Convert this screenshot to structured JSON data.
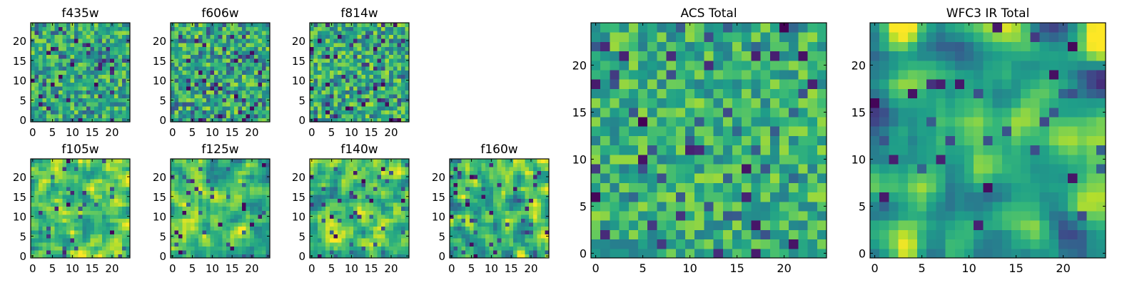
{
  "figure": {
    "colormap": "viridis"
  },
  "colors": {
    "viridis_low": "#440154",
    "viridis_mid": "#21918c",
    "viridis_high": "#fde725"
  },
  "chart_data": [
    {
      "type": "heatmap",
      "title": "f435w",
      "grid": [
        25,
        25
      ],
      "xlim": [
        0,
        24
      ],
      "ylim": [
        0,
        24
      ],
      "xticks": [
        0,
        5,
        10,
        15,
        20
      ],
      "yticks": [
        0,
        5,
        10,
        15,
        20
      ],
      "seed": 11,
      "smooth": 0,
      "dark_prob": 0.05,
      "mean": 0.62,
      "spread": 0.14
    },
    {
      "type": "heatmap",
      "title": "f606w",
      "grid": [
        25,
        25
      ],
      "xlim": [
        0,
        24
      ],
      "ylim": [
        0,
        24
      ],
      "xticks": [
        0,
        5,
        10,
        15,
        20
      ],
      "yticks": [
        0,
        5,
        10,
        15,
        20
      ],
      "seed": 23,
      "smooth": 0,
      "dark_prob": 0.06,
      "mean": 0.62,
      "spread": 0.15
    },
    {
      "type": "heatmap",
      "title": "f814w",
      "grid": [
        25,
        25
      ],
      "xlim": [
        0,
        24
      ],
      "ylim": [
        0,
        24
      ],
      "xticks": [
        0,
        5,
        10,
        15,
        20
      ],
      "yticks": [
        0,
        5,
        10,
        15,
        20
      ],
      "seed": 37,
      "smooth": 0,
      "dark_prob": 0.05,
      "mean": 0.63,
      "spread": 0.15
    },
    {
      "type": "heatmap",
      "title": "f105w",
      "grid": [
        25,
        25
      ],
      "xlim": [
        0,
        24
      ],
      "ylim": [
        0,
        24
      ],
      "xticks": [
        0,
        5,
        10,
        15,
        20
      ],
      "yticks": [
        0,
        5,
        10,
        15,
        20
      ],
      "seed": 41,
      "smooth": 1,
      "dark_prob": 0.02,
      "mean": 0.72,
      "spread": 0.12
    },
    {
      "type": "heatmap",
      "title": "f125w",
      "grid": [
        25,
        25
      ],
      "xlim": [
        0,
        24
      ],
      "ylim": [
        0,
        24
      ],
      "xticks": [
        0,
        5,
        10,
        15,
        20
      ],
      "yticks": [
        0,
        5,
        10,
        15,
        20
      ],
      "seed": 53,
      "smooth": 1,
      "dark_prob": 0.03,
      "mean": 0.68,
      "spread": 0.13
    },
    {
      "type": "heatmap",
      "title": "f140w",
      "grid": [
        25,
        25
      ],
      "xlim": [
        0,
        24
      ],
      "ylim": [
        0,
        24
      ],
      "xticks": [
        0,
        5,
        10,
        15,
        20
      ],
      "yticks": [
        0,
        5,
        10,
        15,
        20
      ],
      "seed": 67,
      "smooth": 1,
      "dark_prob": 0.03,
      "mean": 0.7,
      "spread": 0.13
    },
    {
      "type": "heatmap",
      "title": "f160w",
      "grid": [
        25,
        25
      ],
      "xlim": [
        0,
        24
      ],
      "ylim": [
        0,
        24
      ],
      "xticks": [
        0,
        5,
        10,
        15,
        20
      ],
      "yticks": [
        0,
        5,
        10,
        15,
        20
      ],
      "seed": 79,
      "smooth": 1,
      "dark_prob": 0.03,
      "mean": 0.67,
      "spread": 0.14
    },
    {
      "type": "heatmap",
      "title": "ACS Total",
      "grid": [
        25,
        25
      ],
      "xlim": [
        0,
        24
      ],
      "ylim": [
        0,
        24
      ],
      "xticks": [
        0,
        5,
        10,
        15,
        20
      ],
      "yticks": [
        0,
        5,
        10,
        15,
        20
      ],
      "seed": 97,
      "smooth": 0,
      "dark_prob": 0.03,
      "mean": 0.64,
      "spread": 0.13
    },
    {
      "type": "heatmap",
      "title": "WFC3 IR Total",
      "grid": [
        25,
        25
      ],
      "xlim": [
        0,
        24
      ],
      "ylim": [
        0,
        24
      ],
      "xticks": [
        0,
        5,
        10,
        15,
        20
      ],
      "yticks": [
        0,
        5,
        10,
        15,
        20
      ],
      "seed": 113,
      "smooth": 2,
      "dark_prob": 0.02,
      "mean": 0.6,
      "spread": 0.15
    }
  ]
}
